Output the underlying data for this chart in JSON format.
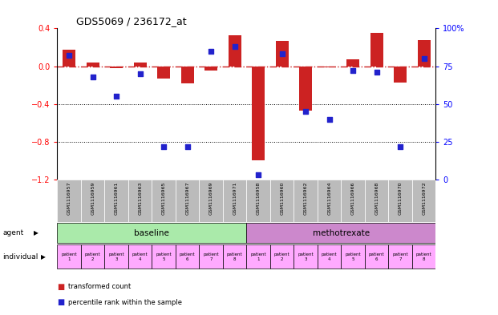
{
  "title": "GDS5069 / 236172_at",
  "samples": [
    "GSM1116957",
    "GSM1116959",
    "GSM1116961",
    "GSM1116963",
    "GSM1116965",
    "GSM1116967",
    "GSM1116969",
    "GSM1116971",
    "GSM1116958",
    "GSM1116960",
    "GSM1116962",
    "GSM1116964",
    "GSM1116966",
    "GSM1116968",
    "GSM1116970",
    "GSM1116972"
  ],
  "transformed_count": [
    0.17,
    0.04,
    -0.02,
    0.04,
    -0.13,
    -0.18,
    -0.05,
    0.33,
    -1.0,
    0.27,
    -0.47,
    -0.01,
    0.07,
    0.35,
    -0.17,
    0.28
  ],
  "percentile_rank": [
    82,
    68,
    55,
    70,
    22,
    22,
    85,
    88,
    3,
    83,
    45,
    40,
    72,
    71,
    22,
    80
  ],
  "ylim_left": [
    -1.2,
    0.4
  ],
  "ylim_right": [
    0,
    100
  ],
  "yticks_left": [
    -1.2,
    -0.8,
    -0.4,
    0.0,
    0.4
  ],
  "yticks_right": [
    0,
    25,
    50,
    75,
    100
  ],
  "agent_groups": [
    {
      "label": "baseline",
      "start": 0,
      "end": 8,
      "color": "#aaeaaa"
    },
    {
      "label": "methotrexate",
      "start": 8,
      "end": 16,
      "color": "#cc88cc"
    }
  ],
  "individual_labels": [
    "patient\n1",
    "patient\n2",
    "patient\n3",
    "patient\n4",
    "patient\n5",
    "patient\n6",
    "patient\n7",
    "patient\n8",
    "patient\n1",
    "patient\n2",
    "patient\n3",
    "patient\n4",
    "patient\n5",
    "patient\n6",
    "patient\n7",
    "patient\n8"
  ],
  "bar_color": "#cc2222",
  "dot_color": "#2222cc",
  "hline_color": "#cc2222",
  "dotted_hlines": [
    -0.4,
    -0.8
  ],
  "bar_width": 0.55,
  "legend_items": [
    {
      "label": "transformed count",
      "color": "#cc2222"
    },
    {
      "label": "percentile rank within the sample",
      "color": "#2222cc"
    }
  ],
  "agent_label": "agent",
  "individual_label": "individual",
  "sample_bg_color": "#bbbbbb",
  "indiv_color": "#ffaaff"
}
